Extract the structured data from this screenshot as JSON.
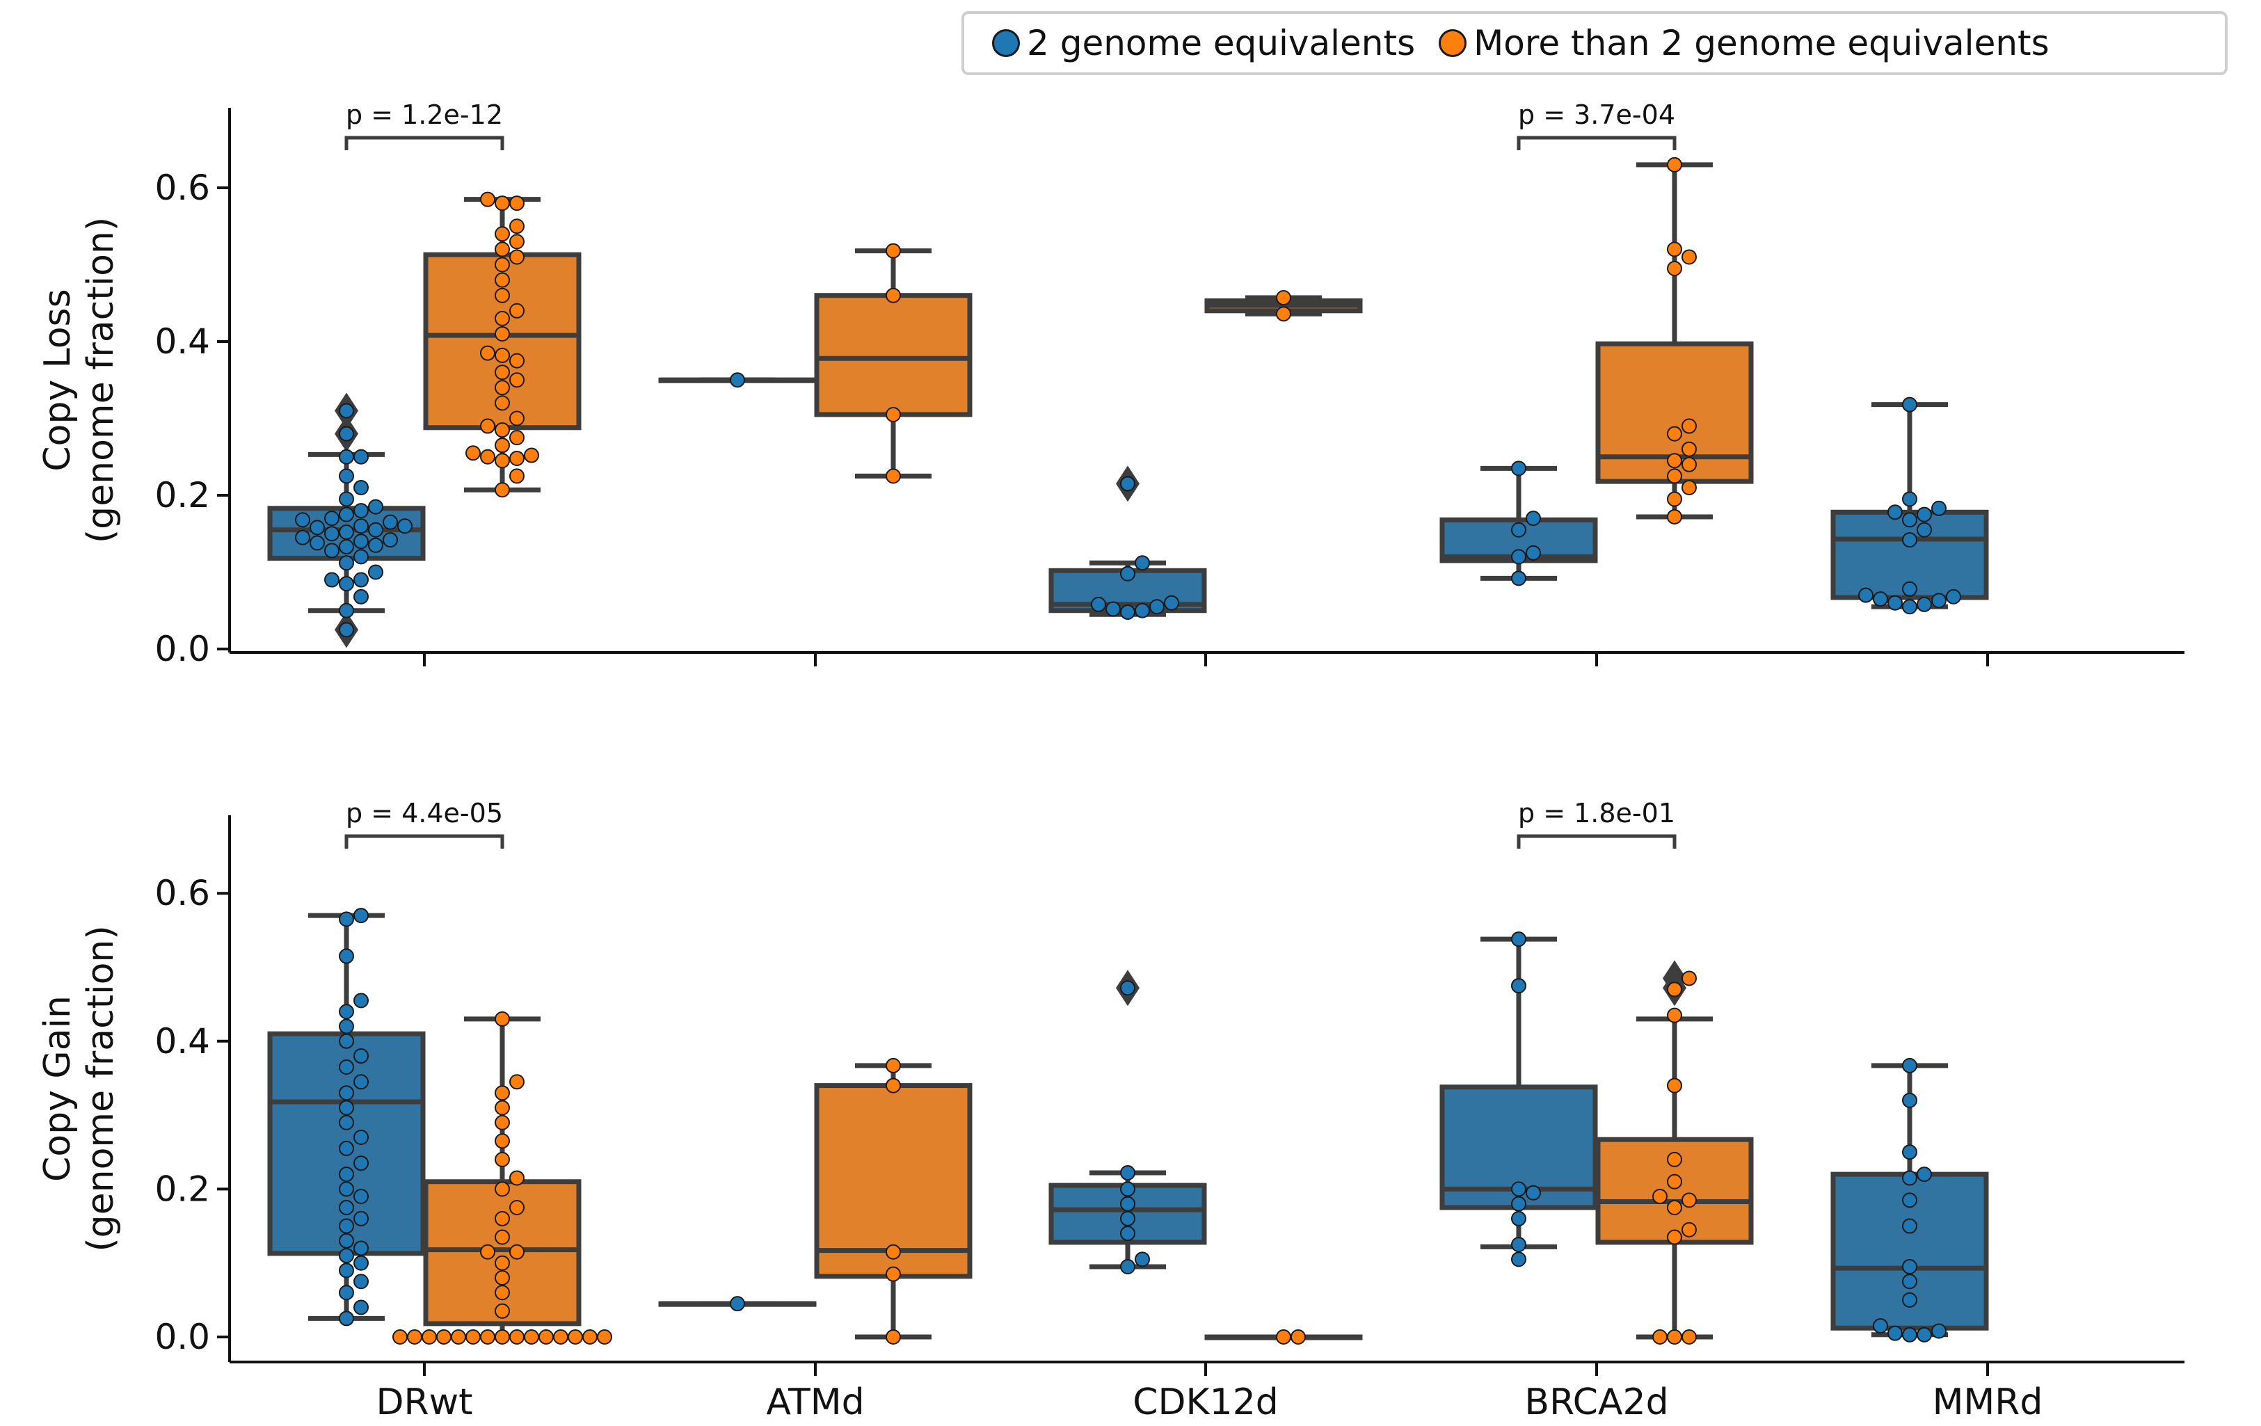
{
  "legend": {
    "entries": [
      {
        "label": "2 genome equivalents",
        "color": "#1f77b4"
      },
      {
        "label": "More than 2 genome equivalents",
        "color": "#ff7f0e"
      }
    ]
  },
  "chart_data": [
    {
      "type": "box",
      "ylabel": [
        "Copy Loss",
        "(genome fraction)"
      ],
      "ylim": [
        0.0,
        0.7
      ],
      "yticks": [
        "0.0",
        "0.2",
        "0.4",
        "0.6"
      ],
      "categories": [
        "DRwt",
        "ATMd",
        "CDK12d",
        "BRCA2d",
        "MMRd"
      ],
      "annotations": [
        {
          "category": "DRwt",
          "text": "p = 1.2e-12"
        },
        {
          "category": "BRCA2d",
          "text": "p = 3.7e-04"
        }
      ],
      "series": [
        {
          "name": "2 genome equivalents",
          "color": "#1f77b4",
          "boxes": [
            {
              "category": "DRwt",
              "min": 0.05,
              "q1": 0.118,
              "median": 0.155,
              "q3": 0.183,
              "max": 0.253,
              "outliers": [
                0.31,
                0.28,
                0.025
              ]
            },
            {
              "category": "ATMd",
              "min": 0.35,
              "q1": 0.35,
              "median": 0.35,
              "q3": 0.35,
              "max": 0.35,
              "outliers": []
            },
            {
              "category": "CDK12d",
              "min": 0.045,
              "q1": 0.05,
              "median": 0.058,
              "q3": 0.102,
              "max": 0.112,
              "outliers": [
                0.215
              ]
            },
            {
              "category": "BRCA2d",
              "min": 0.092,
              "q1": 0.115,
              "median": 0.12,
              "q3": 0.168,
              "max": 0.235,
              "outliers": []
            },
            {
              "category": "MMRd",
              "min": 0.055,
              "q1": 0.067,
              "median": 0.143,
              "q3": 0.178,
              "max": 0.318,
              "outliers": []
            }
          ],
          "points": {
            "DRwt": [
              0.025,
              0.05,
              0.068,
              0.085,
              0.09,
              0.09,
              0.1,
              0.112,
              0.12,
              0.128,
              0.133,
              0.135,
              0.138,
              0.14,
              0.142,
              0.145,
              0.15,
              0.152,
              0.155,
              0.158,
              0.16,
              0.16,
              0.165,
              0.168,
              0.17,
              0.175,
              0.18,
              0.185,
              0.195,
              0.21,
              0.225,
              0.25,
              0.25,
              0.28,
              0.31
            ],
            "ATMd": [
              0.35
            ],
            "CDK12d": [
              0.048,
              0.05,
              0.052,
              0.055,
              0.058,
              0.06,
              0.098,
              0.112,
              0.215
            ],
            "BRCA2d": [
              0.092,
              0.12,
              0.125,
              0.155,
              0.17,
              0.235
            ],
            "MMRd": [
              0.055,
              0.058,
              0.06,
              0.063,
              0.065,
              0.068,
              0.07,
              0.078,
              0.142,
              0.155,
              0.168,
              0.175,
              0.178,
              0.183,
              0.195,
              0.318
            ]
          }
        },
        {
          "name": "More than 2 genome equivalents",
          "color": "#ff7f0e",
          "boxes": [
            {
              "category": "DRwt",
              "min": 0.207,
              "q1": 0.288,
              "median": 0.408,
              "q3": 0.513,
              "max": 0.585,
              "outliers": []
            },
            {
              "category": "ATMd",
              "min": 0.225,
              "q1": 0.305,
              "median": 0.378,
              "q3": 0.46,
              "max": 0.518,
              "outliers": []
            },
            {
              "category": "CDK12d",
              "min": 0.436,
              "q1": 0.44,
              "median": 0.447,
              "q3": 0.453,
              "max": 0.457,
              "outliers": []
            },
            {
              "category": "BRCA2d",
              "min": 0.172,
              "q1": 0.218,
              "median": 0.25,
              "q3": 0.397,
              "max": 0.63,
              "outliers": []
            },
            {
              "category": "MMRd",
              "min": null,
              "q1": null,
              "median": null,
              "q3": null,
              "max": null,
              "outliers": []
            }
          ],
          "points": {
            "DRwt": [
              0.207,
              0.225,
              0.245,
              0.248,
              0.25,
              0.252,
              0.255,
              0.265,
              0.275,
              0.285,
              0.29,
              0.3,
              0.32,
              0.34,
              0.35,
              0.36,
              0.375,
              0.382,
              0.385,
              0.41,
              0.43,
              0.44,
              0.46,
              0.48,
              0.5,
              0.51,
              0.52,
              0.53,
              0.54,
              0.55,
              0.58,
              0.58,
              0.585
            ],
            "ATMd": [
              0.225,
              0.305,
              0.46,
              0.518
            ],
            "CDK12d": [
              0.436,
              0.457
            ],
            "BRCA2d": [
              0.172,
              0.195,
              0.21,
              0.225,
              0.24,
              0.245,
              0.26,
              0.28,
              0.29,
              0.495,
              0.51,
              0.52,
              0.63
            ],
            "MMRd": []
          }
        }
      ]
    },
    {
      "type": "box",
      "ylabel": [
        "Copy Gain",
        "(genome fraction)"
      ],
      "ylim": [
        -0.03,
        0.7
      ],
      "yticks": [
        "0.0",
        "0.2",
        "0.4",
        "0.6"
      ],
      "xtick_labels": [
        "DRwt",
        "ATMd",
        "CDK12d",
        "BRCA2d",
        "MMRd"
      ],
      "categories": [
        "DRwt",
        "ATMd",
        "CDK12d",
        "BRCA2d",
        "MMRd"
      ],
      "annotations": [
        {
          "category": "DRwt",
          "text": "p = 4.4e-05"
        },
        {
          "category": "BRCA2d",
          "text": "p = 1.8e-01"
        }
      ],
      "series": [
        {
          "name": "2 genome equivalents",
          "color": "#1f77b4",
          "boxes": [
            {
              "category": "DRwt",
              "min": 0.025,
              "q1": 0.113,
              "median": 0.318,
              "q3": 0.41,
              "max": 0.57,
              "outliers": []
            },
            {
              "category": "ATMd",
              "min": 0.045,
              "q1": 0.045,
              "median": 0.045,
              "q3": 0.045,
              "max": 0.045,
              "outliers": []
            },
            {
              "category": "CDK12d",
              "min": 0.095,
              "q1": 0.128,
              "median": 0.172,
              "q3": 0.205,
              "max": 0.222,
              "outliers": [
                0.472
              ]
            },
            {
              "category": "BRCA2d",
              "min": 0.122,
              "q1": 0.175,
              "median": 0.2,
              "q3": 0.338,
              "max": 0.538,
              "outliers": []
            },
            {
              "category": "MMRd",
              "min": 0.003,
              "q1": 0.012,
              "median": 0.093,
              "q3": 0.22,
              "max": 0.367,
              "outliers": []
            }
          ],
          "points": {
            "DRwt": [
              0.025,
              0.04,
              0.06,
              0.075,
              0.09,
              0.1,
              0.11,
              0.12,
              0.13,
              0.15,
              0.16,
              0.175,
              0.19,
              0.2,
              0.22,
              0.235,
              0.255,
              0.27,
              0.29,
              0.31,
              0.33,
              0.345,
              0.365,
              0.38,
              0.4,
              0.42,
              0.44,
              0.455,
              0.515,
              0.565,
              0.57
            ],
            "ATMd": [
              0.045
            ],
            "CDK12d": [
              0.095,
              0.105,
              0.14,
              0.16,
              0.18,
              0.2,
              0.222,
              0.472
            ],
            "BRCA2d": [
              0.105,
              0.125,
              0.16,
              0.18,
              0.195,
              0.2,
              0.475,
              0.538
            ],
            "MMRd": [
              0.003,
              0.003,
              0.005,
              0.008,
              0.015,
              0.05,
              0.075,
              0.095,
              0.15,
              0.185,
              0.215,
              0.22,
              0.25,
              0.32,
              0.367
            ]
          }
        },
        {
          "name": "More than 2 genome equivalents",
          "color": "#ff7f0e",
          "boxes": [
            {
              "category": "DRwt",
              "min": 0.0,
              "q1": 0.018,
              "median": 0.118,
              "q3": 0.21,
              "max": 0.43,
              "outliers": []
            },
            {
              "category": "ATMd",
              "min": 0.0,
              "q1": 0.082,
              "median": 0.117,
              "q3": 0.34,
              "max": 0.367,
              "outliers": []
            },
            {
              "category": "CDK12d",
              "min": 0.0,
              "q1": 0.0,
              "median": 0.0,
              "q3": 0.0,
              "max": 0.0,
              "outliers": []
            },
            {
              "category": "BRCA2d",
              "min": 0.0,
              "q1": 0.128,
              "median": 0.183,
              "q3": 0.267,
              "max": 0.43,
              "outliers": [
                0.485,
                0.472
              ]
            },
            {
              "category": "MMRd",
              "min": null,
              "q1": null,
              "median": null,
              "q3": null,
              "max": null,
              "outliers": []
            }
          ],
          "points": {
            "DRwt": [
              0.0,
              0.0,
              0.0,
              0.0,
              0.0,
              0.0,
              0.0,
              0.0,
              0.0,
              0.0,
              0.0,
              0.0,
              0.0,
              0.0,
              0.0,
              0.035,
              0.06,
              0.08,
              0.1,
              0.115,
              0.115,
              0.135,
              0.16,
              0.175,
              0.2,
              0.215,
              0.24,
              0.265,
              0.29,
              0.31,
              0.33,
              0.345,
              0.43
            ],
            "ATMd": [
              0.0,
              0.085,
              0.115,
              0.34,
              0.367
            ],
            "CDK12d": [
              0.0,
              0.0
            ],
            "BRCA2d": [
              0.0,
              0.0,
              0.0,
              0.135,
              0.145,
              0.175,
              0.185,
              0.19,
              0.21,
              0.24,
              0.34,
              0.435,
              0.47,
              0.485
            ],
            "MMRd": []
          }
        }
      ]
    }
  ]
}
